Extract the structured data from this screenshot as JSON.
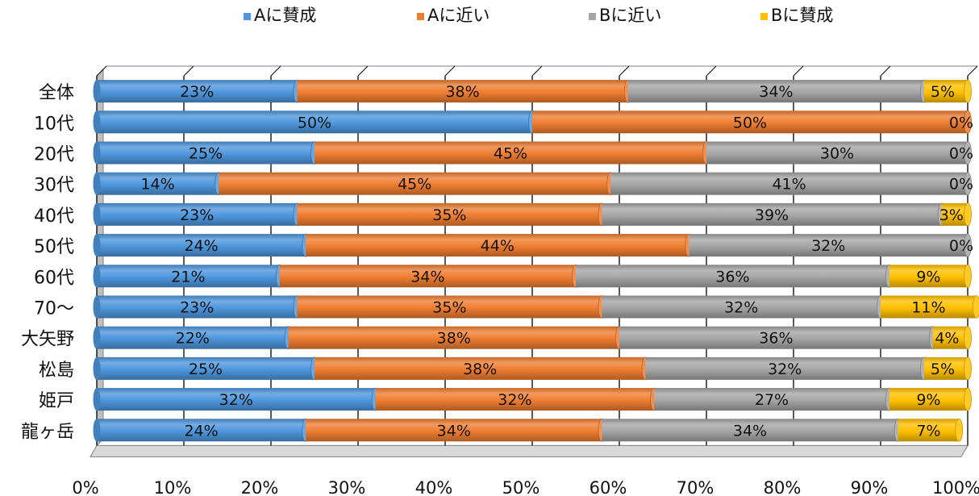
{
  "chart_data": {
    "type": "bar",
    "orientation": "horizontal",
    "stacked": "percent",
    "style": "3d-cylinder",
    "categories": [
      "全体",
      "10代",
      "20代",
      "30代",
      "40代",
      "50代",
      "60代",
      "70～",
      "大矢野",
      "松島",
      "姫戸",
      "龍ヶ岳"
    ],
    "series": [
      {
        "name": "Aに賛成",
        "color": "#4e96dd",
        "values": [
          23,
          50,
          25,
          14,
          23,
          24,
          21,
          23,
          22,
          25,
          32,
          24
        ]
      },
      {
        "name": "Aに近い",
        "color": "#ef7d31",
        "values": [
          38,
          50,
          45,
          45,
          35,
          44,
          34,
          35,
          38,
          38,
          32,
          34
        ]
      },
      {
        "name": "Bに近い",
        "color": "#a5a5a5",
        "values": [
          34,
          0,
          30,
          41,
          39,
          32,
          36,
          32,
          36,
          32,
          27,
          34
        ]
      },
      {
        "name": "Bに賛成",
        "color": "#ffc000",
        "values": [
          5,
          0,
          0,
          0,
          3,
          0,
          9,
          11,
          4,
          5,
          9,
          7
        ]
      }
    ],
    "x_ticks": [
      "0%",
      "10%",
      "20%",
      "30%",
      "40%",
      "50%",
      "60%",
      "70%",
      "80%",
      "90%",
      "100%"
    ],
    "xlim": [
      0,
      100
    ],
    "grid": true,
    "legend": "top",
    "data_label_suffix": "%"
  }
}
